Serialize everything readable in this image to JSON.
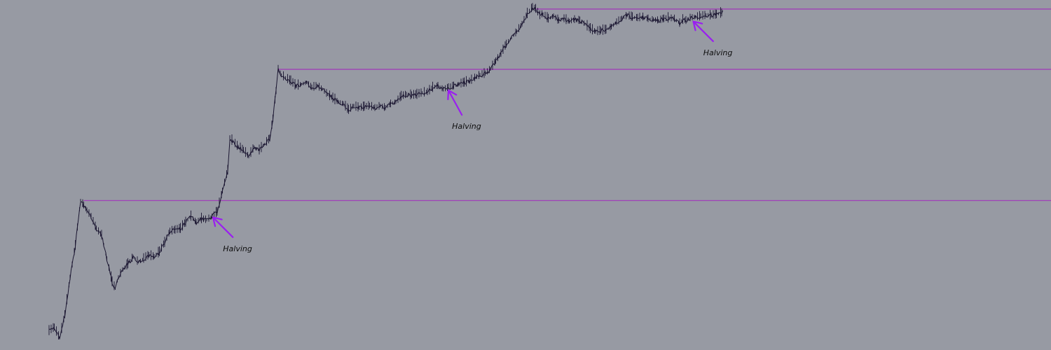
{
  "chart_data": {
    "type": "line",
    "style": "candlestick-like price path on log scale",
    "log_scale": true,
    "grid": false,
    "colors": {
      "background": "#979aa3",
      "price": "#1a1530",
      "levels": "#a040b8",
      "arrows": "#9a1ef0"
    },
    "price_path": [
      [
        0,
        0.3
      ],
      [
        5,
        0.31
      ],
      [
        10,
        0.28
      ],
      [
        15,
        0.35
      ],
      [
        20,
        0.5
      ],
      [
        25,
        0.68
      ],
      [
        30,
        1.05
      ],
      [
        33,
        1.0
      ],
      [
        36,
        0.95
      ],
      [
        40,
        0.9
      ],
      [
        45,
        0.8
      ],
      [
        50,
        0.75
      ],
      [
        55,
        0.6
      ],
      [
        60,
        0.48
      ],
      [
        63,
        0.45
      ],
      [
        66,
        0.5
      ],
      [
        70,
        0.54
      ],
      [
        75,
        0.57
      ],
      [
        80,
        0.61
      ],
      [
        85,
        0.58
      ],
      [
        90,
        0.6
      ],
      [
        95,
        0.62
      ],
      [
        100,
        0.61
      ],
      [
        105,
        0.64
      ],
      [
        110,
        0.7
      ],
      [
        115,
        0.78
      ],
      [
        120,
        0.79
      ],
      [
        125,
        0.8
      ],
      [
        130,
        0.85
      ],
      [
        135,
        0.9
      ],
      [
        140,
        0.85
      ],
      [
        145,
        0.88
      ],
      [
        150,
        0.87
      ],
      [
        155,
        0.9
      ],
      [
        160,
        0.94
      ],
      [
        165,
        1.15
      ],
      [
        170,
        1.4
      ],
      [
        172,
        1.9
      ],
      [
        175,
        1.85
      ],
      [
        180,
        1.75
      ],
      [
        185,
        1.7
      ],
      [
        190,
        1.6
      ],
      [
        195,
        1.75
      ],
      [
        200,
        1.7
      ],
      [
        205,
        1.8
      ],
      [
        210,
        1.9
      ],
      [
        213,
        2.3
      ],
      [
        216,
        3.0
      ],
      [
        218,
        3.7
      ],
      [
        221,
        3.5
      ],
      [
        225,
        3.4
      ],
      [
        230,
        3.3
      ],
      [
        235,
        3.15
      ],
      [
        240,
        3.2
      ],
      [
        245,
        3.25
      ],
      [
        250,
        3.1
      ],
      [
        255,
        3.15
      ],
      [
        260,
        3.05
      ],
      [
        265,
        2.9
      ],
      [
        270,
        2.8
      ],
      [
        275,
        2.7
      ],
      [
        280,
        2.65
      ],
      [
        285,
        2.5
      ],
      [
        290,
        2.6
      ],
      [
        295,
        2.55
      ],
      [
        300,
        2.58
      ],
      [
        305,
        2.6
      ],
      [
        310,
        2.55
      ],
      [
        315,
        2.6
      ],
      [
        320,
        2.55
      ],
      [
        325,
        2.65
      ],
      [
        330,
        2.7
      ],
      [
        335,
        2.85
      ],
      [
        340,
        2.9
      ],
      [
        345,
        2.88
      ],
      [
        350,
        2.9
      ],
      [
        355,
        2.95
      ],
      [
        360,
        2.97
      ],
      [
        365,
        3.1
      ],
      [
        370,
        3.15
      ],
      [
        375,
        3.05
      ],
      [
        380,
        3.1
      ],
      [
        385,
        3.15
      ],
      [
        390,
        3.2
      ],
      [
        395,
        3.25
      ],
      [
        400,
        3.3
      ],
      [
        405,
        3.4
      ],
      [
        410,
        3.5
      ],
      [
        415,
        3.55
      ],
      [
        420,
        3.7
      ],
      [
        425,
        4.0
      ],
      [
        430,
        4.3
      ],
      [
        435,
        4.7
      ],
      [
        440,
        5.0
      ],
      [
        445,
        5.3
      ],
      [
        450,
        5.7
      ],
      [
        455,
        6.3
      ],
      [
        460,
        6.7
      ],
      [
        463,
        6.6
      ],
      [
        467,
        6.2
      ],
      [
        470,
        6.3
      ],
      [
        475,
        6.0
      ],
      [
        480,
        6.15
      ],
      [
        485,
        5.9
      ],
      [
        490,
        6.0
      ],
      [
        495,
        5.85
      ],
      [
        500,
        5.95
      ],
      [
        505,
        5.9
      ],
      [
        510,
        5.7
      ],
      [
        515,
        5.45
      ],
      [
        520,
        5.3
      ],
      [
        525,
        5.35
      ],
      [
        530,
        5.4
      ],
      [
        535,
        5.55
      ],
      [
        540,
        5.8
      ],
      [
        545,
        6.0
      ],
      [
        550,
        6.2
      ],
      [
        555,
        6.1
      ],
      [
        560,
        6.05
      ],
      [
        565,
        6.1
      ],
      [
        570,
        6.0
      ],
      [
        575,
        5.95
      ],
      [
        580,
        5.9
      ],
      [
        585,
        6.0
      ],
      [
        590,
        6.05
      ],
      [
        595,
        6.0
      ],
      [
        600,
        5.75
      ],
      [
        603,
        5.95
      ],
      [
        606,
        5.9
      ],
      [
        610,
        6.05
      ],
      [
        615,
        6.1
      ],
      [
        620,
        6.15
      ],
      [
        625,
        6.2
      ],
      [
        630,
        6.2
      ],
      [
        635,
        6.25
      ],
      [
        640,
        6.35
      ],
      [
        642,
        6.43
      ]
    ],
    "reference_levels": [
      {
        "start_x": 33,
        "y": 1.05
      },
      {
        "start_x": 218,
        "y": 3.7
      },
      {
        "start_x": 463,
        "y": 6.6
      }
    ],
    "annotations": [
      {
        "text": "Halving",
        "arrow_tip": [
          156,
          0.93
        ]
      },
      {
        "text": "Halving",
        "arrow_tip": [
          380,
          3.15
        ]
      },
      {
        "text": "Halving",
        "arrow_tip": [
          613,
          6.1
        ]
      }
    ],
    "axis": {
      "x_range": [
        0,
        1000
      ],
      "y_range": [
        0.25,
        7.2
      ]
    }
  }
}
